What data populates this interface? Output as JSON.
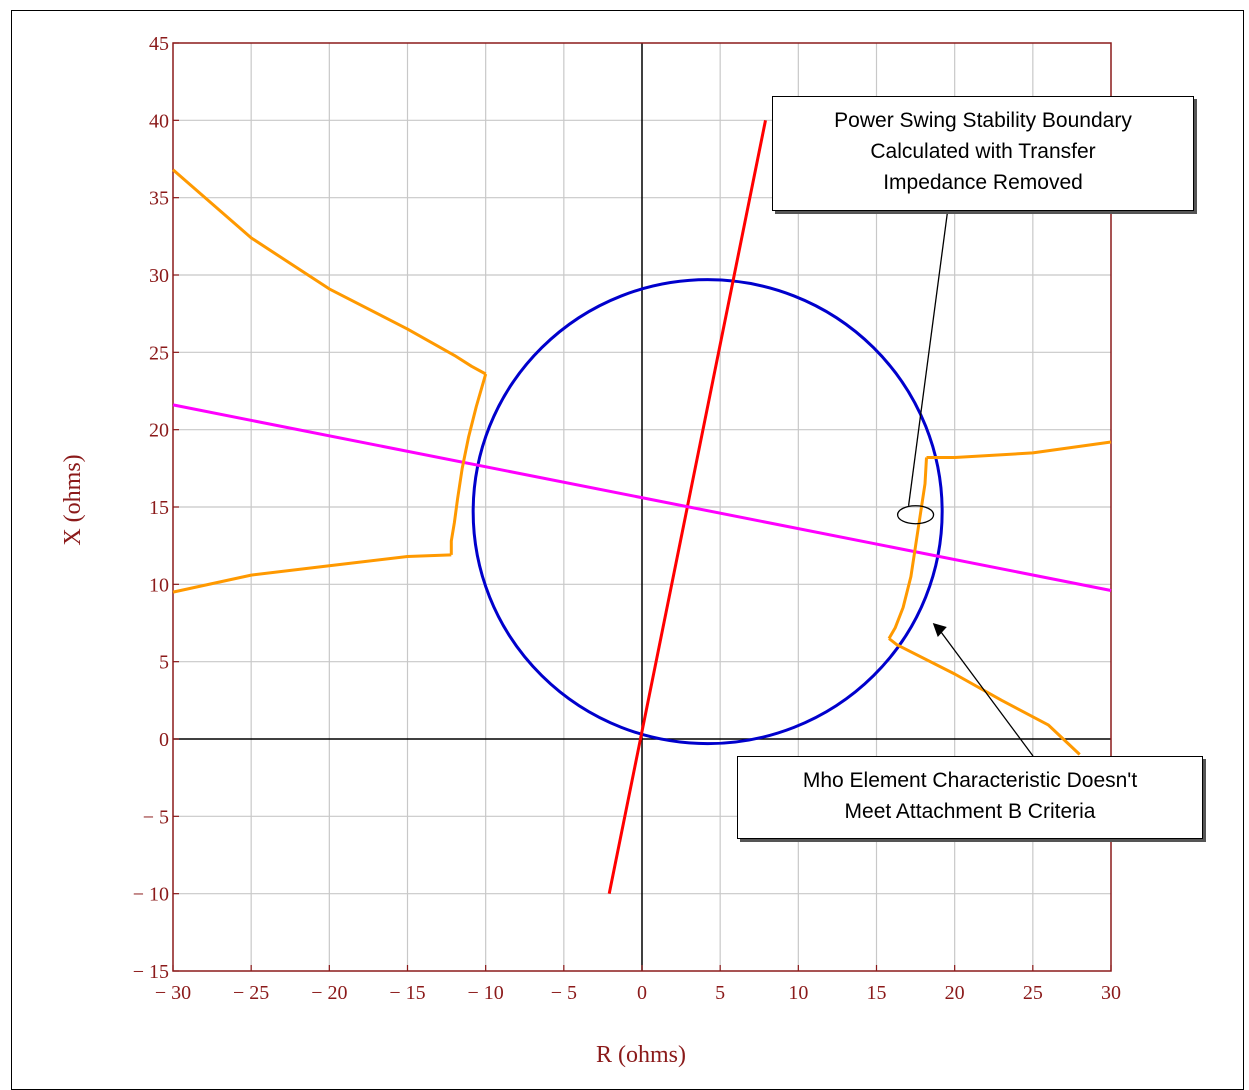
{
  "chart_data": {
    "type": "line",
    "title": "",
    "xlabel": "R (ohms)",
    "ylabel": "X (ohms)",
    "xlim": [
      -30,
      30
    ],
    "ylim": [
      -15,
      45
    ],
    "xticks": [
      -30,
      -25,
      -20,
      -15,
      -10,
      -5,
      0,
      5,
      10,
      15,
      20,
      25,
      30
    ],
    "yticks": [
      -15,
      -10,
      -5,
      0,
      5,
      10,
      15,
      20,
      25,
      30,
      35,
      40,
      45
    ],
    "xtick_labels": [
      "− 30",
      "− 25",
      "− 20",
      "− 15",
      "− 10",
      "− 5",
      "0",
      "5",
      "10",
      "15",
      "20",
      "25",
      "30"
    ],
    "ytick_labels": [
      "− 15",
      "− 10",
      "− 5",
      "0",
      "5",
      "10",
      "15",
      "20",
      "25",
      "30",
      "35",
      "40",
      "45"
    ],
    "grid": true,
    "colors": {
      "frame": "#8b1a1a",
      "grid": "#c8c8c8",
      "axes": "#000000",
      "mho_circle": "#0000cc",
      "line_impedance": "#ff0000",
      "blinder": "#ff00ff",
      "stability_boundary": "#ff9900"
    },
    "series": [
      {
        "key": "mho_circle",
        "center": [
          4.2,
          14.7
        ],
        "radius": 15.0
      },
      {
        "key": "line_impedance",
        "x": [
          -2.1,
          7.9
        ],
        "y": [
          -10,
          40
        ]
      },
      {
        "key": "blinder",
        "x": [
          -30,
          30
        ],
        "y": [
          21.6,
          9.6
        ]
      },
      {
        "key": "stability_left_upper",
        "x": [
          -30,
          -25,
          -20,
          -15,
          -12,
          -10.9,
          -10
        ],
        "y": [
          36.8,
          32.4,
          29.1,
          26.5,
          24.8,
          24.1,
          23.6
        ]
      },
      {
        "key": "stability_left_inner",
        "x": [
          -10,
          -10.6,
          -11.1,
          -11.5,
          -11.8,
          -12,
          -12.2,
          -12.2
        ],
        "y": [
          23.6,
          21.5,
          19.5,
          17.5,
          15.5,
          14,
          12.8,
          11.9
        ]
      },
      {
        "key": "stability_left_lower",
        "x": [
          -12.2,
          -15,
          -20,
          -25,
          -30
        ],
        "y": [
          11.9,
          11.8,
          11.2,
          10.6,
          9.5
        ]
      },
      {
        "key": "stability_right_upper",
        "x": [
          18.2,
          20,
          25,
          30
        ],
        "y": [
          18.2,
          18.2,
          18.5,
          19.2
        ]
      },
      {
        "key": "stability_right_inner",
        "x": [
          18.2,
          18.1,
          17.8,
          17.5,
          17.2,
          16.7,
          16.2,
          15.8
        ],
        "y": [
          18.2,
          16.5,
          14.5,
          12.5,
          10.5,
          8.5,
          7.2,
          6.5
        ]
      },
      {
        "key": "stability_right_lower",
        "x": [
          15.8,
          16.3,
          20,
          23,
          26,
          28
        ],
        "y": [
          6.5,
          6.1,
          4.2,
          2.5,
          0.9,
          -1.0
        ]
      }
    ],
    "annotations": [
      {
        "key": "stability_note",
        "text": "Power Swing Stability Boundary\nCalculated with Transfer\nImpedance Removed"
      },
      {
        "key": "mho_note",
        "text": "Mho Element Characteristic Doesn't\nMeet Attachment B Criteria"
      }
    ]
  }
}
